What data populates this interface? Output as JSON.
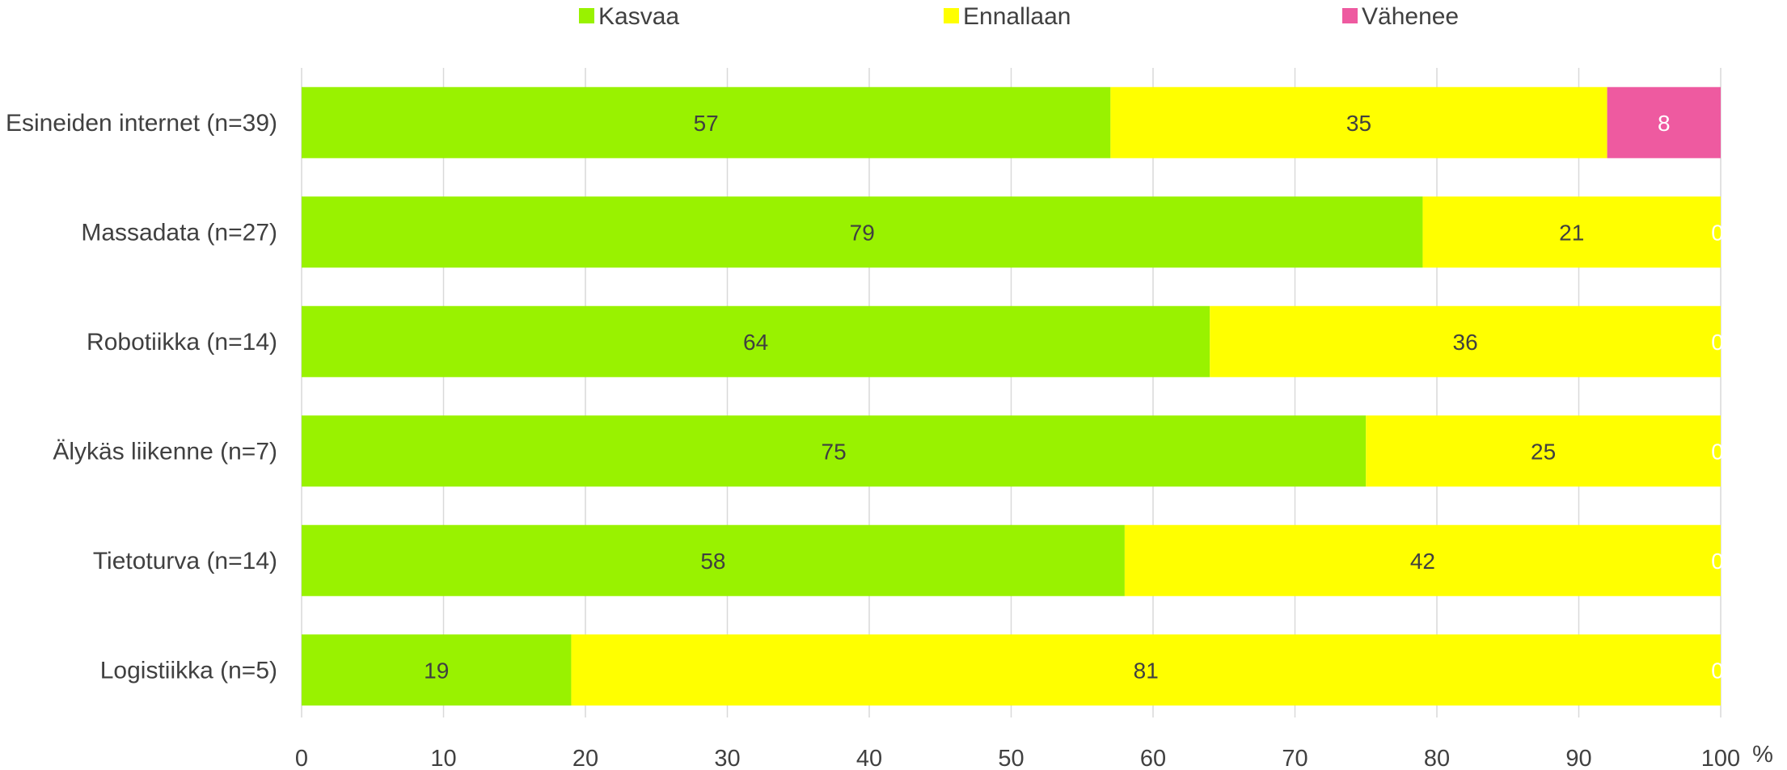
{
  "chart_data": {
    "type": "bar",
    "orientation": "horizontal",
    "stacked": true,
    "categories": [
      "Esineiden internet (n=39)",
      "Massadata (n=27)",
      "Robotiikka (n=14)",
      "Älykäs liikenne (n=7)",
      "Tietoturva (n=14)",
      "Logistiikka (n=5)"
    ],
    "series": [
      {
        "name": "Kasvaa",
        "values": [
          57,
          79,
          64,
          75,
          58,
          19
        ],
        "color": "#99f200",
        "label_color": "#404040"
      },
      {
        "name": "Ennallaan",
        "values": [
          35,
          21,
          36,
          25,
          42,
          81
        ],
        "color": "#ffff00",
        "label_color": "#404040"
      },
      {
        "name": "Vähenee",
        "values": [
          8,
          0,
          0,
          0,
          0,
          0
        ],
        "color": "#ee5aa0",
        "label_color": "#ffffff"
      }
    ],
    "x_ticks": [
      "0",
      "10",
      "20",
      "30",
      "40",
      "50",
      "60",
      "70",
      "80",
      "90",
      "100"
    ],
    "xlim": [
      0,
      100
    ],
    "x_unit": "%",
    "grid": true,
    "legend": "top"
  }
}
